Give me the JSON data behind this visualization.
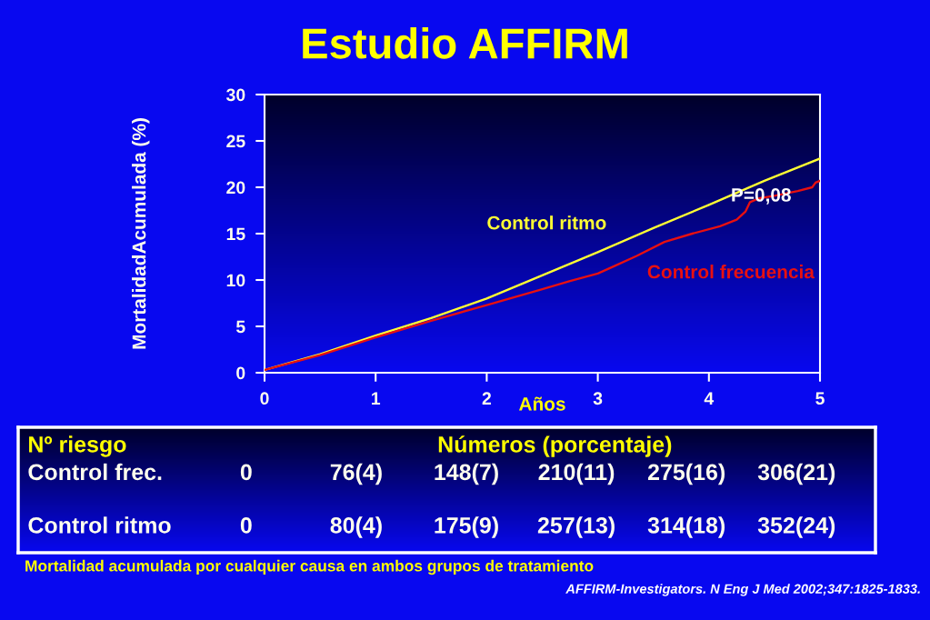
{
  "chart_data": [
    {
      "type": "line",
      "title": "Estudio AFFIRM",
      "xlabel": "Años",
      "ylabel": "MortalidadAcumulada (%)",
      "xlim": [
        0,
        5
      ],
      "xticks": [
        0,
        1,
        2,
        3,
        4,
        5
      ],
      "ylim": [
        0,
        30
      ],
      "yticks": [
        0,
        5,
        10,
        15,
        20,
        25,
        30
      ],
      "line_style": "solid",
      "series": [
        {
          "name": "Control ritmo",
          "color": "#ffff33",
          "x": [
            0,
            0.5,
            1,
            1.5,
            2,
            2.5,
            3,
            3.5,
            4,
            4.5,
            5
          ],
          "values": [
            0.3,
            2.0,
            4.0,
            5.9,
            8.0,
            10.5,
            13.0,
            15.6,
            18.1,
            20.7,
            23.1
          ]
        },
        {
          "name": "Control frecuencia",
          "color": "#e81010",
          "x": [
            0,
            0.5,
            1,
            1.5,
            2,
            2.5,
            2.75,
            3,
            3.15,
            3.35,
            3.6,
            3.85,
            4.1,
            4.25,
            4.33,
            4.37,
            4.45,
            4.6,
            4.8,
            4.93,
            4.96,
            5
          ],
          "values": [
            0.3,
            1.9,
            3.8,
            5.6,
            7.3,
            9.0,
            9.9,
            10.7,
            11.5,
            12.6,
            14.1,
            15.0,
            15.8,
            16.5,
            17.4,
            18.4,
            18.8,
            19.1,
            19.6,
            20.0,
            20.5,
            20.7
          ]
        }
      ],
      "annotations": [
        {
          "text": "P=0,08",
          "x": 4.47,
          "y": 19.0
        }
      ]
    },
    {
      "type": "other",
      "ylabel": "Nº riesgo",
      "title": "Números (porcentaje)",
      "y_categories": [
        "Control frec.",
        "Control ritmo"
      ],
      "cell_labels": [
        [
          "0",
          "76(4)",
          "148(7)",
          "210(11)",
          "275(16)",
          "306(21)"
        ],
        [
          "0",
          "80(4)",
          "175(9)",
          "257(13)",
          "314(18)",
          "352(24)"
        ]
      ],
      "annotations": [
        "Mortalidad acumulada por cualquier causa en ambos grupos de tratamiento",
        "AFFIRM-Investigators. N Eng J Med 2002;347:1825-1833."
      ]
    }
  ]
}
